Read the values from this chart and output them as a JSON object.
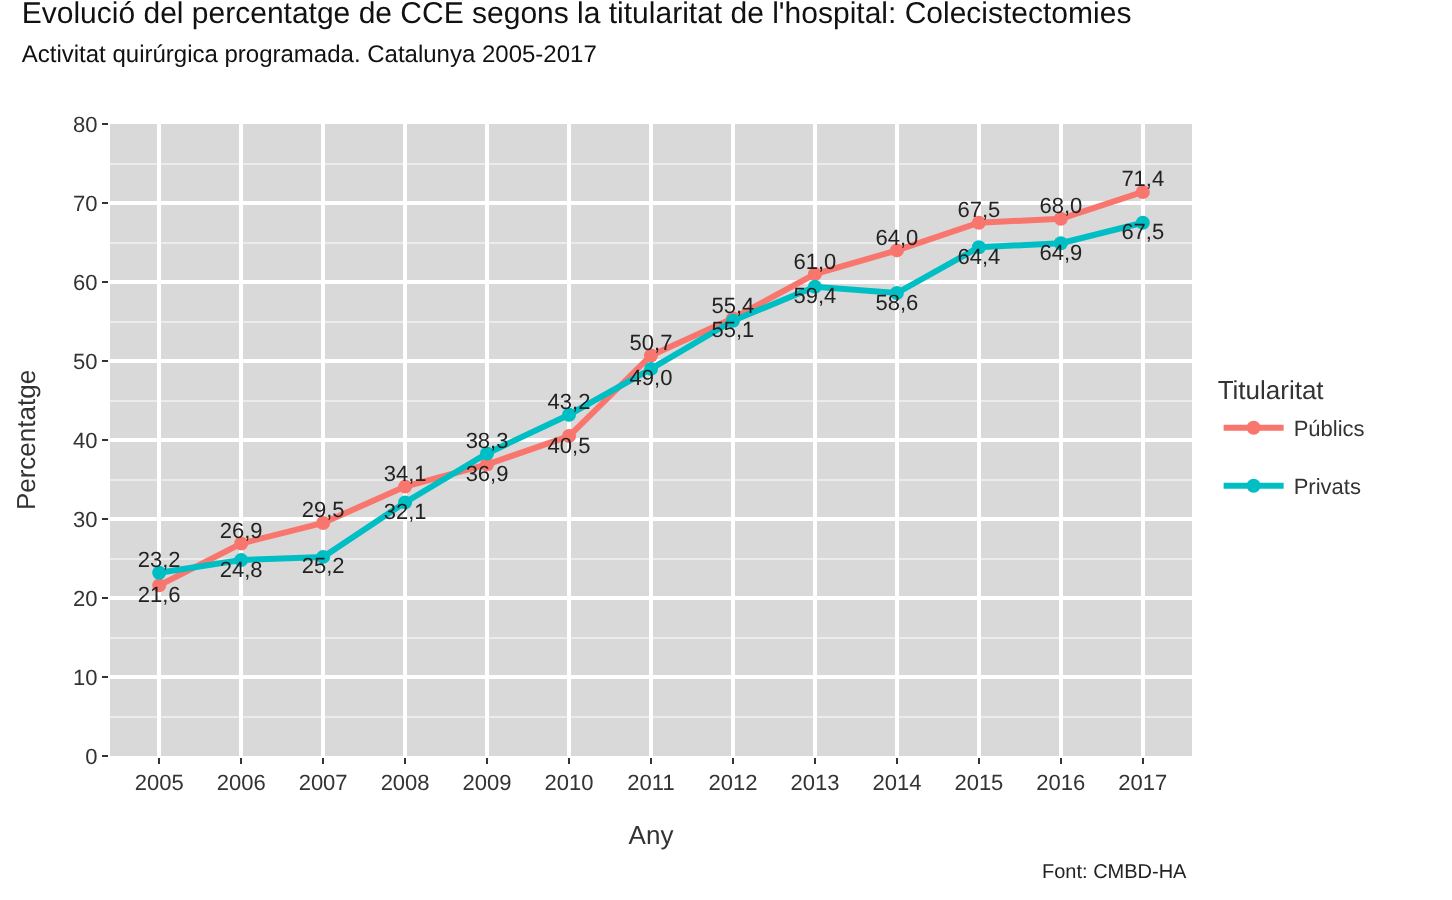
{
  "chart_data": {
    "type": "line",
    "title": "Evolució del percentatge de CCE segons la titularitat de l'hospital: Colecistectomies",
    "subtitle": "Activitat quirúrgica programada. Catalunya 2005-2017",
    "xlabel": "Any",
    "ylabel": "Percentatge",
    "legend_title": "Titularitat",
    "categories": [
      "2005",
      "2006",
      "2007",
      "2008",
      "2009",
      "2010",
      "2011",
      "2012",
      "2013",
      "2014",
      "2015",
      "2016",
      "2017"
    ],
    "series": [
      {
        "name": "Públics",
        "color": "#f8766d",
        "values": [
          21.6,
          26.9,
          29.5,
          34.1,
          36.9,
          40.5,
          50.7,
          55.4,
          61.0,
          64.0,
          67.5,
          68.0,
          71.4
        ],
        "value_labels": [
          "21,6",
          "26,9",
          "29,5",
          "34,1",
          "36,9",
          "40,5",
          "50,7",
          "55,4",
          "61,0",
          "64,0",
          "67,5",
          "68,0",
          "71,4"
        ]
      },
      {
        "name": "Privats",
        "color": "#00bfc4",
        "values": [
          23.2,
          24.8,
          25.2,
          32.1,
          38.3,
          43.2,
          49.0,
          55.1,
          59.4,
          58.6,
          64.4,
          64.9,
          67.5
        ],
        "value_labels": [
          "23,2",
          "24,8",
          "25,2",
          "32,1",
          "38,3",
          "43,2",
          "49,0",
          "55,1",
          "59,4",
          "58,6",
          "64,4",
          "64,9",
          "67,5"
        ]
      }
    ],
    "ylim": [
      0,
      80
    ],
    "yticks": [
      0,
      10,
      20,
      30,
      40,
      50,
      60,
      70,
      80
    ],
    "grid": true,
    "legend": "right",
    "marker": "circle",
    "line_style": "solid",
    "annotations": [
      "Font: CMBD-HA"
    ]
  }
}
